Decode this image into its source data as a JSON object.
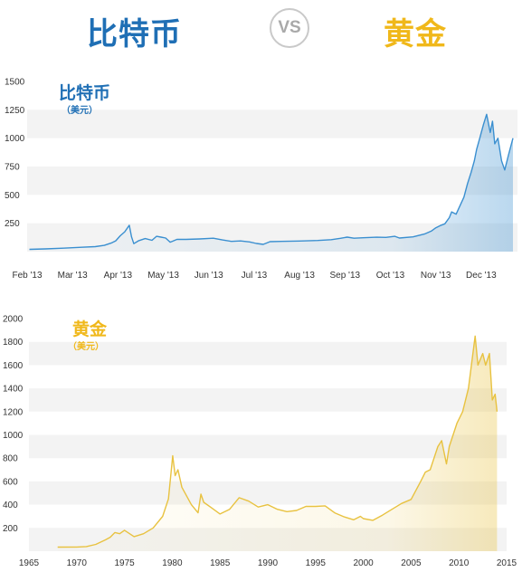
{
  "header": {
    "left_title": "比特币",
    "vs_label": "VS",
    "right_title": "黄金"
  },
  "chart_data": [
    {
      "type": "area",
      "title": "比特币",
      "unit": "（美元）",
      "color": "#3a8fd0",
      "ylim": [
        0,
        1500
      ],
      "yticks": [
        250,
        500,
        750,
        1000,
        1250,
        1500
      ],
      "xlim": [
        0,
        10.8
      ],
      "xticks": [
        {
          "label": "Feb '13",
          "x": 0
        },
        {
          "label": "Mar '13",
          "x": 1
        },
        {
          "label": "Apr '13",
          "x": 2
        },
        {
          "label": "May '13",
          "x": 3
        },
        {
          "label": "Jun '13",
          "x": 4
        },
        {
          "label": "Jul '13",
          "x": 5
        },
        {
          "label": "Aug '13",
          "x": 6
        },
        {
          "label": "Sep '13",
          "x": 7
        },
        {
          "label": "Oct '13",
          "x": 8
        },
        {
          "label": "Nov '13",
          "x": 9
        },
        {
          "label": "Dec '13",
          "x": 10
        }
      ],
      "grid": "alternating-bands",
      "points": [
        [
          0.05,
          20
        ],
        [
          0.4,
          24
        ],
        [
          0.8,
          30
        ],
        [
          1.2,
          38
        ],
        [
          1.5,
          44
        ],
        [
          1.7,
          55
        ],
        [
          1.85,
          75
        ],
        [
          1.95,
          95
        ],
        [
          2.05,
          140
        ],
        [
          2.15,
          175
        ],
        [
          2.25,
          232
        ],
        [
          2.3,
          130
        ],
        [
          2.35,
          70
        ],
        [
          2.45,
          95
        ],
        [
          2.6,
          115
        ],
        [
          2.75,
          100
        ],
        [
          2.85,
          135
        ],
        [
          2.95,
          128
        ],
        [
          3.05,
          120
        ],
        [
          3.15,
          83
        ],
        [
          3.3,
          108
        ],
        [
          3.5,
          108
        ],
        [
          3.8,
          112
        ],
        [
          4.1,
          118
        ],
        [
          4.3,
          103
        ],
        [
          4.5,
          90
        ],
        [
          4.7,
          94
        ],
        [
          4.9,
          85
        ],
        [
          5.05,
          72
        ],
        [
          5.2,
          64
        ],
        [
          5.35,
          88
        ],
        [
          5.6,
          90
        ],
        [
          6.0,
          93
        ],
        [
          6.4,
          98
        ],
        [
          6.7,
          105
        ],
        [
          6.9,
          117
        ],
        [
          7.05,
          128
        ],
        [
          7.2,
          118
        ],
        [
          7.4,
          122
        ],
        [
          7.7,
          127
        ],
        [
          7.9,
          125
        ],
        [
          8.1,
          135
        ],
        [
          8.2,
          120
        ],
        [
          8.5,
          130
        ],
        [
          8.75,
          155
        ],
        [
          8.9,
          180
        ],
        [
          9.0,
          210
        ],
        [
          9.1,
          230
        ],
        [
          9.2,
          245
        ],
        [
          9.3,
          300
        ],
        [
          9.35,
          350
        ],
        [
          9.45,
          330
        ],
        [
          9.55,
          420
        ],
        [
          9.62,
          480
        ],
        [
          9.7,
          600
        ],
        [
          9.78,
          700
        ],
        [
          9.85,
          800
        ],
        [
          9.9,
          900
        ],
        [
          9.97,
          1000
        ],
        [
          10.05,
          1120
        ],
        [
          10.12,
          1210
        ],
        [
          10.2,
          1050
        ],
        [
          10.25,
          1150
        ],
        [
          10.3,
          950
        ],
        [
          10.37,
          1000
        ],
        [
          10.45,
          800
        ],
        [
          10.52,
          720
        ],
        [
          10.6,
          850
        ],
        [
          10.7,
          1000
        ]
      ]
    },
    {
      "type": "area",
      "title": "黄金",
      "unit": "（美元）",
      "color": "#e8c240",
      "ylim": [
        0,
        2000
      ],
      "yticks": [
        200,
        400,
        600,
        800,
        1000,
        1200,
        1400,
        1600,
        1800,
        2000
      ],
      "xlim": [
        1965,
        2015
      ],
      "xticks": [
        1965,
        1970,
        1975,
        1980,
        1985,
        1990,
        1995,
        2000,
        2005,
        2010,
        2015
      ],
      "grid": "alternating-bands",
      "points": [
        [
          1968,
          35
        ],
        [
          1970,
          36
        ],
        [
          1971,
          40
        ],
        [
          1972,
          58
        ],
        [
          1973,
          97
        ],
        [
          1973.5,
          120
        ],
        [
          1974,
          160
        ],
        [
          1974.5,
          150
        ],
        [
          1975,
          180
        ],
        [
          1976,
          125
        ],
        [
          1977,
          150
        ],
        [
          1978,
          200
        ],
        [
          1979,
          300
        ],
        [
          1979.6,
          450
        ],
        [
          1980.05,
          820
        ],
        [
          1980.3,
          650
        ],
        [
          1980.6,
          700
        ],
        [
          1981,
          550
        ],
        [
          1982,
          400
        ],
        [
          1982.7,
          330
        ],
        [
          1983,
          490
        ],
        [
          1983.3,
          420
        ],
        [
          1984,
          380
        ],
        [
          1985,
          320
        ],
        [
          1986,
          360
        ],
        [
          1987,
          460
        ],
        [
          1988,
          430
        ],
        [
          1989,
          380
        ],
        [
          1990,
          400
        ],
        [
          1991,
          360
        ],
        [
          1992,
          340
        ],
        [
          1993,
          350
        ],
        [
          1994,
          385
        ],
        [
          1995,
          385
        ],
        [
          1996,
          390
        ],
        [
          1997,
          330
        ],
        [
          1998,
          295
        ],
        [
          1999,
          270
        ],
        [
          1999.7,
          300
        ],
        [
          2000,
          280
        ],
        [
          2001,
          265
        ],
        [
          2002,
          310
        ],
        [
          2003,
          360
        ],
        [
          2004,
          410
        ],
        [
          2005,
          445
        ],
        [
          2006,
          600
        ],
        [
          2006.5,
          680
        ],
        [
          2007,
          700
        ],
        [
          2007.8,
          900
        ],
        [
          2008.2,
          950
        ],
        [
          2008.7,
          750
        ],
        [
          2009,
          900
        ],
        [
          2009.8,
          1100
        ],
        [
          2010.4,
          1200
        ],
        [
          2011,
          1400
        ],
        [
          2011.7,
          1850
        ],
        [
          2012,
          1600
        ],
        [
          2012.5,
          1700
        ],
        [
          2012.8,
          1600
        ],
        [
          2013.2,
          1700
        ],
        [
          2013.5,
          1300
        ],
        [
          2013.8,
          1350
        ],
        [
          2014,
          1200
        ]
      ]
    }
  ]
}
